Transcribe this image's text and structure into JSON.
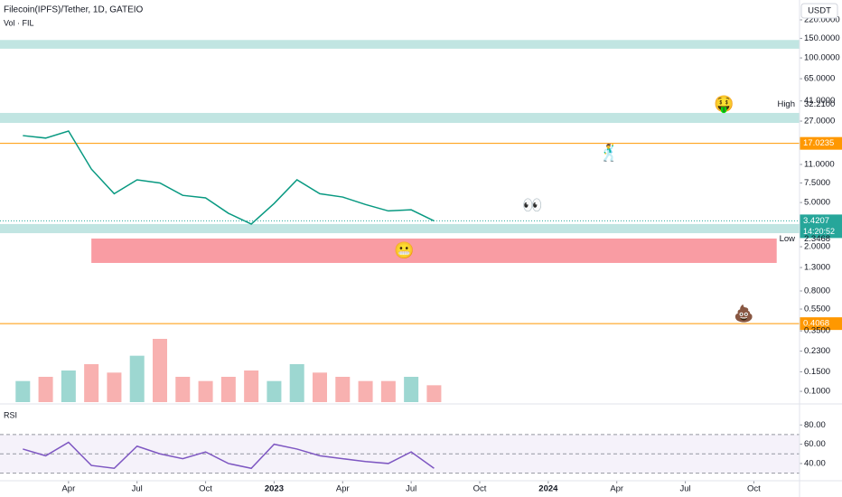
{
  "header": {
    "title": "Filecoin(IPFS)/Tether, 1D, GATEIO",
    "volume_label": "Vol · FIL",
    "rsi_label": "RSI",
    "currency": "USDT"
  },
  "chart_data": [
    {
      "type": "line",
      "log_scale": true,
      "color": "#089981",
      "x": [
        "2022-02",
        "2022-03",
        "2022-04",
        "2022-05",
        "2022-06",
        "2022-07",
        "2022-08",
        "2022-09",
        "2022-10",
        "2022-11",
        "2022-12",
        "2023-01",
        "2023-02",
        "2023-03",
        "2023-04",
        "2023-05",
        "2023-06",
        "2023-07",
        "2023-08"
      ],
      "values": [
        20,
        19,
        22,
        10,
        6,
        8,
        7.5,
        5.8,
        5.5,
        4.0,
        3.2,
        4.9,
        8,
        6,
        5.6,
        4.8,
        4.2,
        4.3,
        3.42
      ],
      "volume": [
        10,
        12,
        15,
        18,
        14,
        22,
        30,
        12,
        10,
        12,
        15,
        10,
        18,
        14,
        12,
        10,
        10,
        12,
        8
      ],
      "xlim": [
        "2022-01",
        "2024-12"
      ],
      "ylim": [
        0.08,
        332
      ],
      "yticks": [
        {
          "value": 220,
          "label": "220.0000"
        },
        {
          "value": 150,
          "label": "150.0000"
        },
        {
          "value": 100,
          "label": "100.0000"
        },
        {
          "value": 65,
          "label": "65.0000"
        },
        {
          "value": 41,
          "label": "41.0000"
        },
        {
          "value": 27,
          "label": "27.0000"
        },
        {
          "value": 11,
          "label": "11.0000"
        },
        {
          "value": 7.5,
          "label": "7.5000"
        },
        {
          "value": 5,
          "label": "5.0000"
        },
        {
          "value": 2,
          "label": "2.0000"
        },
        {
          "value": 1.3,
          "label": "1.3000"
        },
        {
          "value": 0.8,
          "label": "0.8000"
        },
        {
          "value": 0.55,
          "label": "0.5500"
        },
        {
          "value": 0.35,
          "label": "0.3500"
        },
        {
          "value": 0.23,
          "label": "0.2300"
        },
        {
          "value": 0.15,
          "label": "0.1500"
        },
        {
          "value": 0.1,
          "label": "0.1000"
        }
      ],
      "levels": [
        {
          "value": 17.0235,
          "color": "#ff9800"
        },
        {
          "value": 0.4068,
          "color": "#ff9800"
        }
      ],
      "last_price": {
        "value": 3.4207,
        "countdown": "14:20:52",
        "color": "#26a69a"
      },
      "high": {
        "text": "High",
        "price": {
          "value": 32.21,
          "label": "32.2100"
        }
      },
      "low": {
        "text": "Low",
        "price": 2.3468
      },
      "zones": [
        {
          "from": 145,
          "to": 121,
          "color": "#b2dfdb"
        },
        {
          "from": 32,
          "to": 26,
          "color": "#b2dfdb"
        },
        {
          "from": 3.2,
          "to": 2.65,
          "color": "#b2dfdb"
        },
        {
          "from": 2.37,
          "to": 1.43,
          "color": "#f7838c",
          "x": [
            "2022-05",
            "2024-11"
          ]
        }
      ],
      "annotations": [
        "👀",
        "🤑",
        "💩",
        "🕺",
        "😬"
      ]
    },
    {
      "type": "line",
      "color": "#7e57c2",
      "x": [
        "2022-02",
        "2022-03",
        "2022-04",
        "2022-05",
        "2022-06",
        "2022-07",
        "2022-08",
        "2022-09",
        "2022-10",
        "2022-11",
        "2022-12",
        "2023-01",
        "2023-02",
        "2023-03",
        "2023-04",
        "2023-05",
        "2023-06",
        "2023-07",
        "2023-08"
      ],
      "values": [
        55,
        48,
        62,
        38,
        35,
        58,
        50,
        45,
        52,
        40,
        35,
        60,
        55,
        48,
        45,
        42,
        40,
        52,
        35
      ],
      "xlim": [
        "2022-01",
        "2024-12"
      ],
      "ylim": [
        24,
        99
      ],
      "yticks": [
        {
          "value": 80,
          "label": "80.00"
        },
        {
          "value": 60,
          "label": "60.00"
        },
        {
          "value": 40,
          "label": "40.00"
        }
      ],
      "levels": [
        70,
        50,
        30
      ],
      "xticks": [
        {
          "value": "2022-04",
          "label": "Apr"
        },
        {
          "value": "2022-07",
          "label": "Jul"
        },
        {
          "value": "2022-10",
          "label": "Oct"
        },
        {
          "value": "2023-01",
          "label": "2023"
        },
        {
          "value": "2023-04",
          "label": "Apr"
        },
        {
          "value": "2023-07",
          "label": "Jul"
        },
        {
          "value": "2023-10",
          "label": "Oct"
        },
        {
          "value": "2024-01",
          "label": "2024"
        },
        {
          "value": "2024-04",
          "label": "Apr"
        },
        {
          "value": "2024-07",
          "label": "Jul"
        },
        {
          "value": "2024-10",
          "label": "Oct"
        }
      ]
    }
  ]
}
